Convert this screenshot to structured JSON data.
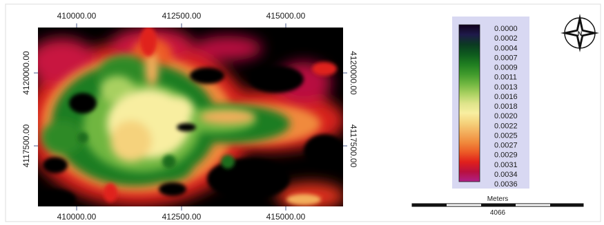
{
  "map": {
    "x_ticks": [
      "410000.00",
      "412500.00",
      "415000.00"
    ],
    "y_ticks": [
      "4120000.00",
      "4117500.00"
    ]
  },
  "legend": {
    "labels": [
      "0.0000",
      "0.0002",
      "0.0004",
      "0.0007",
      "0.0009",
      "0.0011",
      "0.0013",
      "0.0016",
      "0.0018",
      "0.0020",
      "0.0022",
      "0.0025",
      "0.0027",
      "0.0029",
      "0.0031",
      "0.0034",
      "0.0036"
    ],
    "gradient": [
      "#10001c",
      "#1f1a4a",
      "#0b3a22",
      "#0e5a1e",
      "#1f7d20",
      "#3f9a2c",
      "#6fb640",
      "#a8d060",
      "#dde48a",
      "#f8eea0",
      "#f5d27c",
      "#f3ae5c",
      "#f08a3c",
      "#ec5a26",
      "#e0201c",
      "#b81040",
      "#b02088"
    ]
  },
  "scale_bar": {
    "unit": "Meters",
    "distance": "4066"
  },
  "north_arrow": {
    "icon": "compass-rose-icon",
    "letter": "N"
  }
}
